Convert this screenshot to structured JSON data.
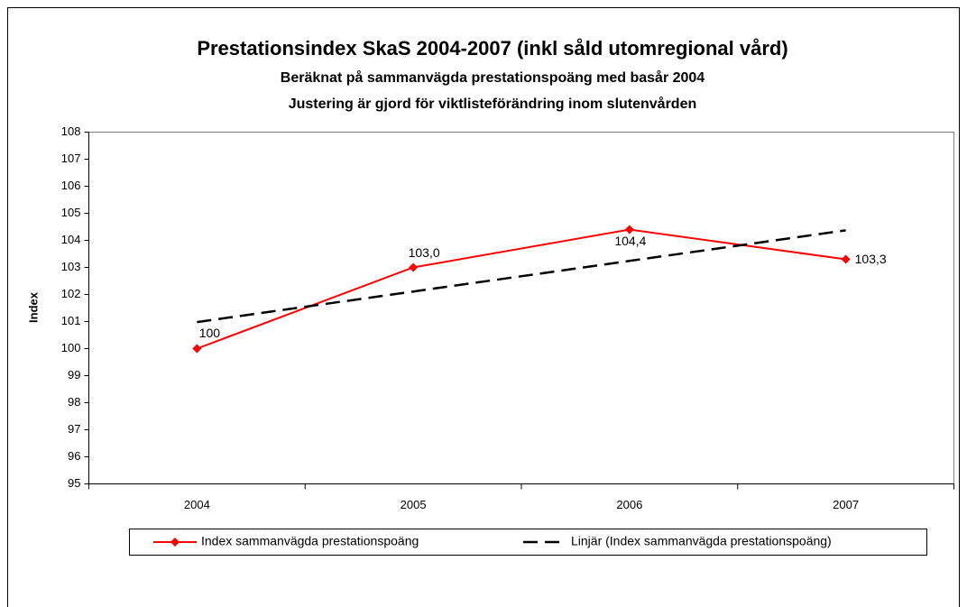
{
  "chart_data": {
    "type": "line",
    "title": "Prestationsindex SkaS 2004-2007 (inkl såld utomregional vård)",
    "subtitle": "Beräknat på sammanvägda prestationspoäng med basår 2004",
    "subtitle2": "Justering är gjord för viktlisteförändring inom slutenvården",
    "y_label": "Index",
    "categories": [
      "2004",
      "2005",
      "2006",
      "2007"
    ],
    "series": [
      {
        "name": "Index sammanvägda prestationspoäng",
        "color": "#ff0000",
        "values": [
          100,
          103.0,
          104.4,
          103.3
        ],
        "value_labels": [
          "100",
          "103,0",
          "104,4",
          "103,3"
        ]
      },
      {
        "name": "Linjär (Index sammanvägda prestationspoäng)",
        "color": "#000000",
        "dash": true,
        "values": [
          100.98,
          102.11,
          103.24,
          104.37
        ]
      }
    ],
    "ylim": [
      95,
      108
    ],
    "yticks": [
      95,
      96,
      97,
      98,
      99,
      100,
      101,
      102,
      103,
      104,
      105,
      106,
      107,
      108
    ],
    "legend": "bottom"
  }
}
